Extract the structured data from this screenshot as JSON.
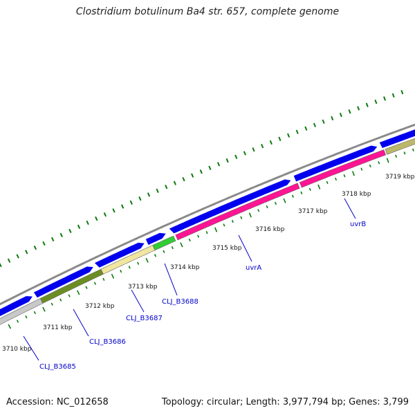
{
  "title": "Clostridium botulinum Ba4 str. 657, complete genome",
  "footer": {
    "accession": "Accession: NC_012658",
    "topology": "Topology: circular; Length: 3,977,794 bp; Genes: 3,799"
  },
  "colors": {
    "backbone": "#8a8a8a",
    "cds_forward": "#0000ee",
    "tick": "#0a7a0a",
    "label": "#0000c8"
  },
  "kbp_labels": [
    "3710 kbp",
    "3711 kbp",
    "3712 kbp",
    "3713 kbp",
    "3714 kbp",
    "3715 kbp",
    "3716 kbp",
    "3717 kbp",
    "3718 kbp",
    "3719 kbp"
  ],
  "genes": [
    {
      "name": "CLJ_B3685",
      "color": "#c8c8c8"
    },
    {
      "name": "CLJ_B3686",
      "color": "#6b8e23"
    },
    {
      "name": "CLJ_B3687",
      "color": "#f0e6a0"
    },
    {
      "name": "CLJ_B3688",
      "color": "#33cc33"
    },
    {
      "name": "uvrA",
      "color": "#ff1493"
    },
    {
      "name": "uvrB",
      "color": "#ff1493"
    },
    {
      "name": "",
      "color": "#bdb76b"
    }
  ]
}
